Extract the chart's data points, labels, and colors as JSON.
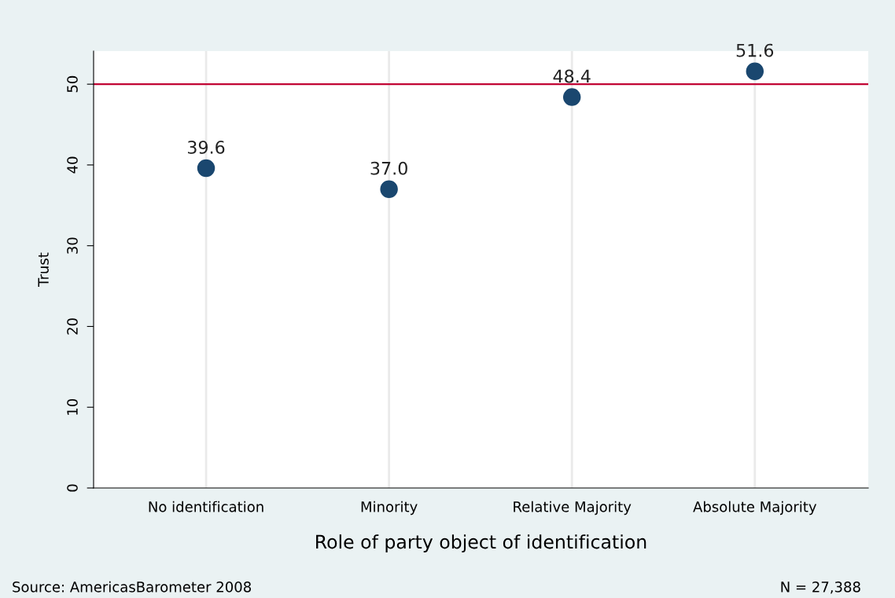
{
  "chart_data": {
    "type": "scatter",
    "xlabel": "Role of party object of identification",
    "ylabel": "Trust",
    "categories": [
      "No identification",
      "Minority",
      "Relative Majority",
      "Absolute Majority"
    ],
    "values": [
      39.6,
      37.0,
      48.4,
      51.6
    ],
    "color": "#1a476f",
    "marker": "circle",
    "value_labels": [
      "39.6",
      "37.0",
      "48.4",
      "51.6"
    ],
    "ylim": [
      0,
      54.1
    ],
    "yticks": [
      0,
      10,
      20,
      30,
      40,
      50
    ],
    "grid": "x",
    "ref_lines": [
      {
        "axis": "y",
        "value": 50,
        "color": "#c10534",
        "line_style": "solid"
      }
    ],
    "annotations": [
      "Source: AmericasBarometer 2008",
      "N = 27,388"
    ]
  }
}
